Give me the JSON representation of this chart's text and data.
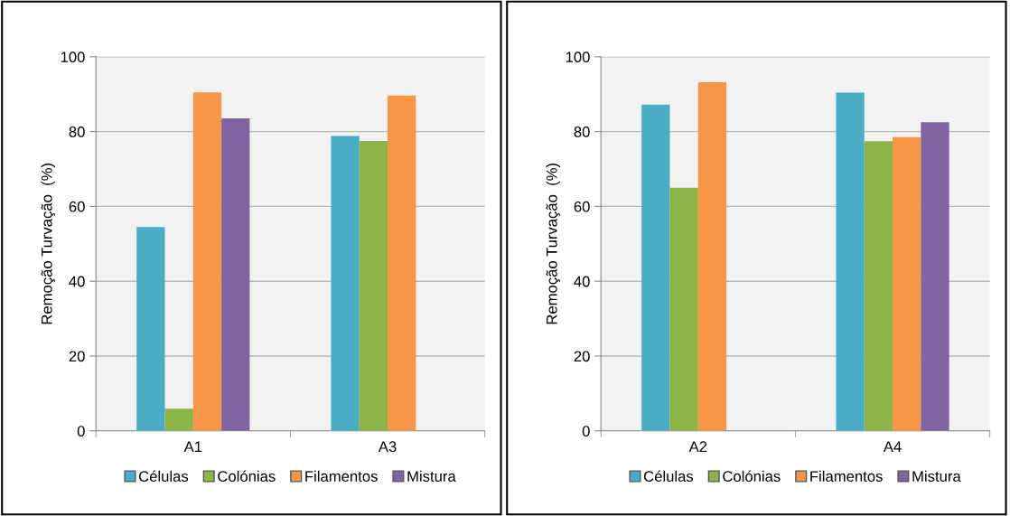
{
  "chart_data": [
    {
      "type": "bar",
      "categories": [
        "A1",
        "A3"
      ],
      "ylabel": "Remoção Turvação  (%)",
      "ylim": [
        0,
        100
      ],
      "yticks": [
        0,
        20,
        40,
        60,
        80,
        100
      ],
      "grid": "y",
      "legend": "bottom",
      "series": [
        {
          "name": "Células",
          "color": "#4bacc6",
          "values": [
            54.5,
            78.8
          ]
        },
        {
          "name": "Colónias",
          "color": "#8db446",
          "values": [
            5.9,
            77.5
          ]
        },
        {
          "name": "Filamentos",
          "color": "#f79646",
          "values": [
            90.5,
            89.6
          ]
        },
        {
          "name": "Mistura",
          "color": "#8064a2",
          "values": [
            83.5,
            null
          ]
        }
      ]
    },
    {
      "type": "bar",
      "categories": [
        "A2",
        "A4"
      ],
      "ylabel": "Remoção Turvação  (%)",
      "ylim": [
        0,
        100
      ],
      "yticks": [
        0,
        20,
        40,
        60,
        80,
        100
      ],
      "grid": "y",
      "legend": "bottom",
      "series": [
        {
          "name": "Células",
          "color": "#4bacc6",
          "values": [
            87.2,
            90.4
          ]
        },
        {
          "name": "Colónias",
          "color": "#8db446",
          "values": [
            65.0,
            77.4
          ]
        },
        {
          "name": "Filamentos",
          "color": "#f79646",
          "values": [
            93.2,
            78.5
          ]
        },
        {
          "name": "Mistura",
          "color": "#8064a2",
          "values": [
            null,
            82.5
          ]
        }
      ]
    }
  ]
}
